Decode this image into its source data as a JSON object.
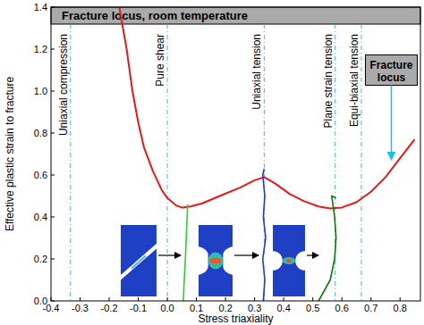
{
  "chart_data": {
    "type": "line",
    "title": "Fracture locus, room temperature",
    "x_label": "Stress triaxiality",
    "y_label": "Effective plastic strain to fracture",
    "xlim": [
      -0.4,
      0.87
    ],
    "ylim": [
      0,
      1.4
    ],
    "xticks": [
      -0.4,
      -0.3,
      -0.2,
      -0.1,
      {
        "value": 0,
        "label": "0.0"
      },
      0.1,
      0.2,
      0.3,
      0.4,
      0.5,
      0.6,
      0.7,
      0.8
    ],
    "yticks": [
      {
        "value": 0,
        "label": "0.0"
      },
      0.2,
      0.4,
      0.6,
      0.8,
      {
        "value": 1,
        "label": "1.0"
      },
      1.2,
      1.4
    ],
    "grid": false,
    "reference_lines": [
      {
        "value": -0.333,
        "label": "Uniaxial compression"
      },
      {
        "value": 0,
        "label": "Pure shear"
      },
      {
        "value": 0.333,
        "label": "Uniaxial tension"
      },
      {
        "value": 0.577,
        "label": "Plane strain tension"
      },
      {
        "value": 0.667,
        "label": "Equi-biaxial tension"
      }
    ],
    "annotations": [
      {
        "text": "Fracture locus",
        "x": 0.77,
        "y": 1.1,
        "arrow_x": 0.77,
        "arrow_y": 0.66
      }
    ],
    "series": [
      {
        "color": "#e31a1c",
        "line_style": "solid",
        "x": [
          -0.165,
          -0.14,
          -0.12,
          -0.1,
          -0.08,
          -0.05,
          -0.02,
          0.0,
          0.03,
          0.05,
          0.08,
          0.12,
          0.18,
          0.25,
          0.3,
          0.333,
          0.37,
          0.42,
          0.47,
          0.52,
          0.56,
          0.6,
          0.65,
          0.7,
          0.75,
          0.8,
          0.85
        ],
        "values": [
          1.4,
          1.2,
          1.0,
          0.85,
          0.73,
          0.62,
          0.53,
          0.49,
          0.455,
          0.445,
          0.45,
          0.465,
          0.5,
          0.54,
          0.575,
          0.59,
          0.56,
          0.51,
          0.475,
          0.45,
          0.44,
          0.445,
          0.47,
          0.52,
          0.59,
          0.68,
          0.77
        ]
      },
      {
        "color": "#33cc33",
        "line_style": "solid",
        "x": [
          0.055,
          0.058,
          0.062,
          0.065,
          0.068,
          0.07
        ],
        "values": [
          0,
          0.1,
          0.2,
          0.3,
          0.4,
          0.46
        ]
      },
      {
        "color": "#2233ee",
        "line_style": "solid",
        "x": [
          0.33,
          0.335,
          0.328,
          0.338,
          0.33,
          0.335,
          0.328,
          0.333
        ],
        "values": [
          0,
          0.1,
          0.2,
          0.3,
          0.4,
          0.5,
          0.6,
          0.63
        ]
      },
      {
        "color": "#0a7a0a",
        "line_style": "solid",
        "x": [
          0.52,
          0.56,
          0.575,
          0.58,
          0.575,
          0.565,
          0.58
        ],
        "values": [
          0,
          0.1,
          0.2,
          0.3,
          0.4,
          0.5,
          0.49
        ]
      }
    ]
  }
}
